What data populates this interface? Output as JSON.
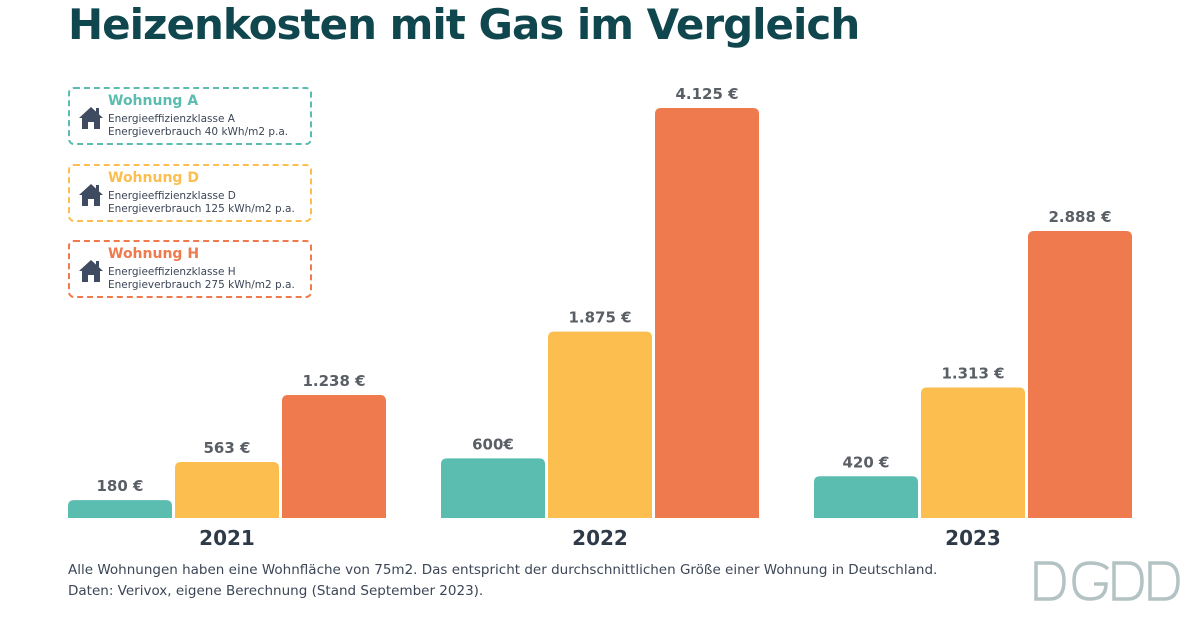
{
  "title": "Heizenkosten mit Gas im Vergleich",
  "legend": [
    {
      "name": "Wohnung A",
      "line1": "Energieeffizienzklasse A",
      "line2": "Energieverbrauch 40 kWh/m2 p.a.",
      "color": "#5bbcb0",
      "icon": "house-icon"
    },
    {
      "name": "Wohnung D",
      "line1": "Energieeffizienzklasse D",
      "line2": "Energieverbrauch 125 kWh/m2 p.a.",
      "color": "#fbbe4f",
      "icon": "house-icon"
    },
    {
      "name": "Wohnung H",
      "line1": "Energieeffizienzklasse H",
      "line2": "Energieverbrauch 275 kWh/m2 p.a.",
      "color": "#ef7a4d",
      "icon": "house-icon"
    }
  ],
  "chart_data": {
    "type": "bar",
    "categories": [
      "2021",
      "2022",
      "2023"
    ],
    "series": [
      {
        "name": "Wohnung A",
        "values": [
          180,
          600,
          420
        ],
        "labels": [
          "180 €",
          "600€",
          "420 €"
        ],
        "color": "#5bbcb0"
      },
      {
        "name": "Wohnung D",
        "values": [
          563,
          1875,
          1313
        ],
        "labels": [
          "563 €",
          "1.875 €",
          "1.313 €"
        ],
        "color": "#fbbe4f"
      },
      {
        "name": "Wohnung H",
        "values": [
          1238,
          4125,
          2888
        ],
        "labels": [
          "1.238 €",
          "4.125 €",
          "2.888 €"
        ],
        "color": "#ef7a4d"
      }
    ],
    "ylim": [
      0,
      4125
    ],
    "grid": false,
    "legend_position": "top-left"
  },
  "footnote": {
    "line1": "Alle Wohnungen haben eine Wohnfläche von 75m2. Das entspricht der durchschnittlichen Größe einer Wohnung in Deutschland.",
    "line2": "Daten: Verivox, eigene Berechnung (Stand September 2023)."
  },
  "logo": {
    "icon": "dgdd-logo",
    "color": "#b3c3c3"
  }
}
